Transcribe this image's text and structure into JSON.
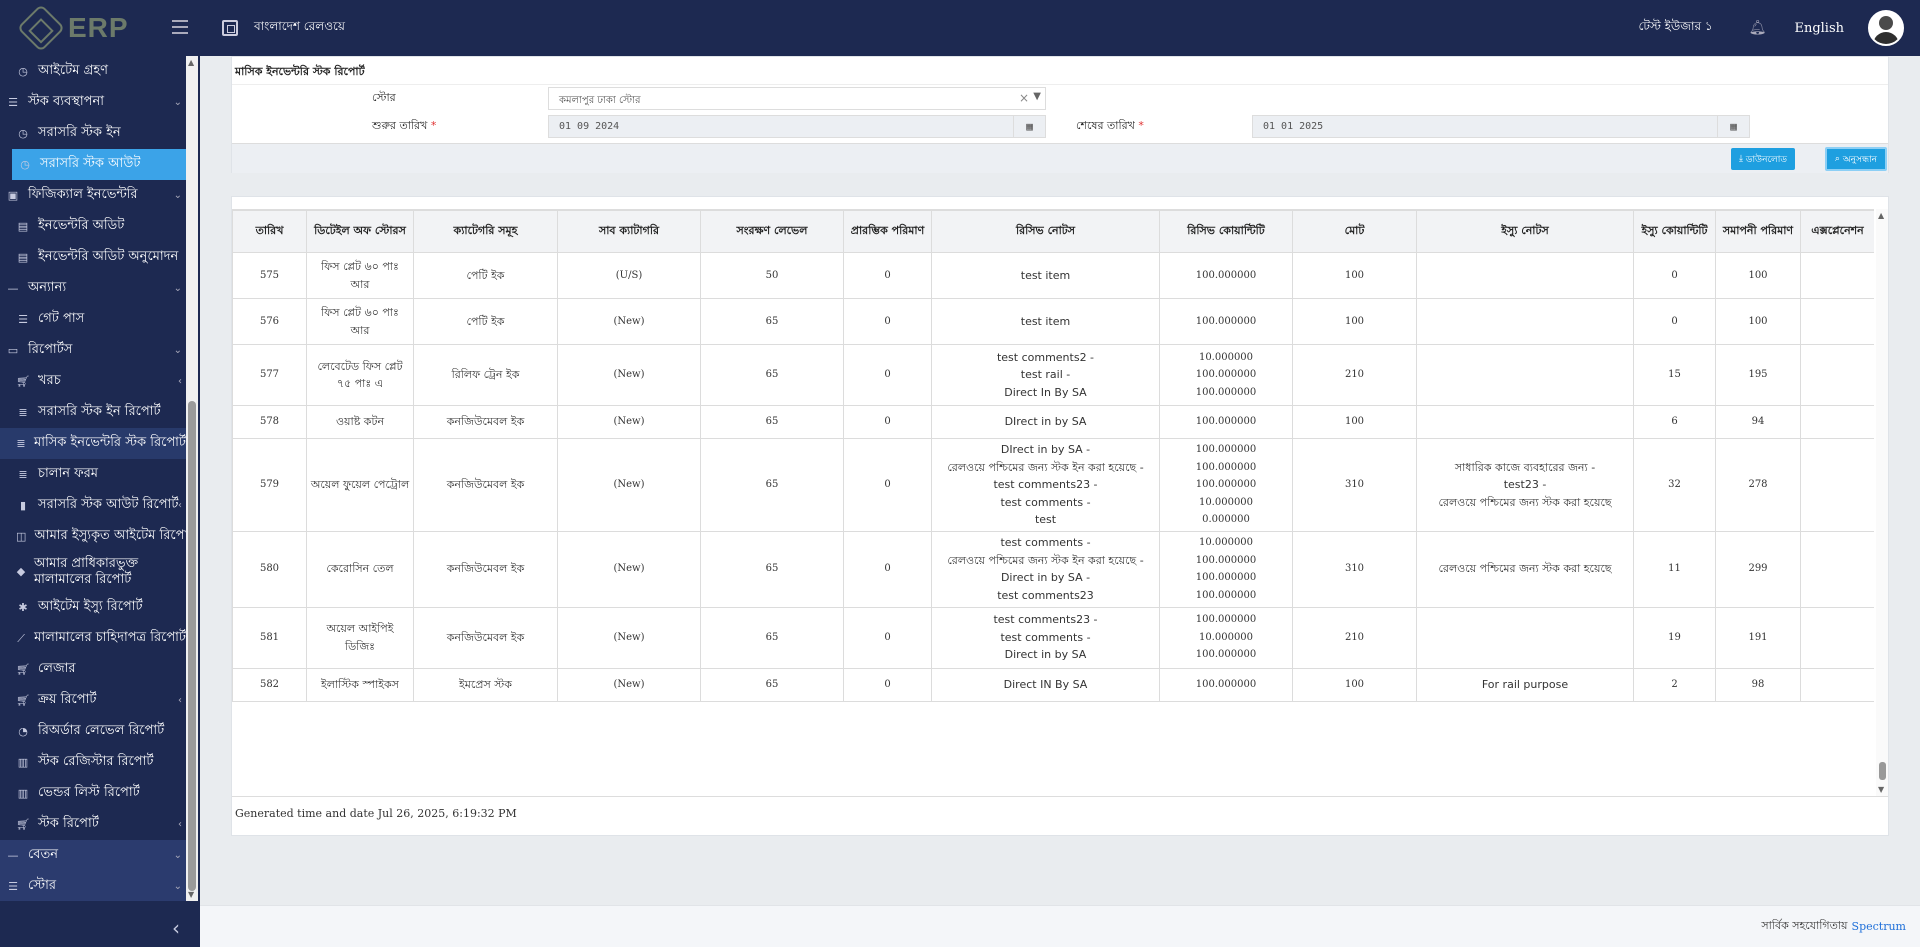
{
  "app": {
    "logo_text": "ERP",
    "org_name": "বাংলাদেশ রেলওয়ে",
    "user_name": "টেস্ট ইউজার ১",
    "language": "English"
  },
  "sidebar": {
    "items": [
      {
        "label": "আইটেম গ্রহণ",
        "icon": "clock-icon",
        "level": 2
      },
      {
        "label": "স্টক ব্যবস্থাপনা",
        "icon": "sliders-icon",
        "level": 1,
        "chev": "⌄"
      },
      {
        "label": "সরাসরি স্টক ইন",
        "icon": "clock-icon",
        "level": 2
      },
      {
        "label": "সরাসরি স্টক আউট",
        "icon": "clock-icon",
        "level": 2,
        "active": true
      },
      {
        "label": "ফিজিক্যাল ইনভেন্টরি",
        "icon": "boxes-icon",
        "level": 1,
        "chev": "⌄"
      },
      {
        "label": "ইনভেন্টরি অডিট",
        "icon": "film-icon",
        "level": 2
      },
      {
        "label": "ইনভেন্টরি অডিট অনুমোদন",
        "icon": "film-icon",
        "level": 2
      },
      {
        "label": "অন্যান্য",
        "icon": "dash-icon",
        "level": 1,
        "chev": "⌄"
      },
      {
        "label": "গেট পাস",
        "icon": "sliders-icon",
        "level": 2
      },
      {
        "label": "রিপোর্টস",
        "icon": "file-icon",
        "level": 1,
        "chev": "⌄"
      },
      {
        "label": "খরচ",
        "icon": "cart-icon",
        "level": 2,
        "chev": "‹"
      },
      {
        "label": "সরাসরি স্টক ইন রিপোর্ট",
        "icon": "stack-icon",
        "level": 2
      },
      {
        "label": "মাসিক ইনভেন্টরি স্টক রিপোর্ট",
        "icon": "stack-icon",
        "level": 2,
        "highlight": true
      },
      {
        "label": "চালান ফরম",
        "icon": "stack-icon",
        "level": 2
      },
      {
        "label": "সরাসরি স্টক আউট রিপোর্ট",
        "icon": "bookmark-icon",
        "level": 2,
        "chev": "‹"
      },
      {
        "label": "আমার ইস্যুকৃত আইটেম রিপোর্ট",
        "icon": "database-icon",
        "level": 2
      },
      {
        "label": "আমার প্রাধিকারভুক্ত মালামালের রিপোর্ট",
        "icon": "tag-icon",
        "level": 2,
        "multi": true
      },
      {
        "label": "আইটেম ইস্যু রিপোর্ট",
        "icon": "gear-icon",
        "level": 2
      },
      {
        "label": "মালামালের চাহিদাপত্র রিপোর্ট",
        "icon": "chart-icon",
        "level": 2
      },
      {
        "label": "লেজার",
        "icon": "cart-icon",
        "level": 2
      },
      {
        "label": "ক্রয় রিপোর্ট",
        "icon": "cart-icon",
        "level": 2,
        "chev": "‹"
      },
      {
        "label": "রিঅর্ডার লেভেল রিপোর্ট",
        "icon": "pie-icon",
        "level": 2
      },
      {
        "label": "স্টক রেজিস্টার রিপোর্ট",
        "icon": "bar-icon",
        "level": 2
      },
      {
        "label": "ভেন্ডর লিস্ট রিপোর্ট",
        "icon": "bar-icon",
        "level": 2
      },
      {
        "label": "স্টক রিপোর্ট",
        "icon": "cart-icon",
        "level": 2,
        "chev": "‹"
      },
      {
        "label": "বেতন",
        "icon": "dash-icon",
        "level": 1,
        "chev": "⌄",
        "section": true
      },
      {
        "label": "স্টোর",
        "icon": "sliders-icon",
        "level": 1,
        "chev": "⌄",
        "section": true
      }
    ]
  },
  "report": {
    "title": "মাসিক ইনভেন্টরি স্টক রিপোর্ট",
    "store_label": "স্টোর",
    "store_value": "কমলাপুর ঢাকা স্টোর",
    "start_label": "শুরুর তারিখ",
    "start_value": "01 09 2024",
    "end_label": "শেষের তারিখ",
    "end_value": "01 01 2025",
    "download_label": "ডাউনলোড",
    "search_label": "অনুসন্ধান",
    "generated": "Generated time and date Jul 26, 2025, 6:19:32 PM"
  },
  "table": {
    "headers": [
      "তারিখ",
      "ডিটেইল অফ স্টোরস",
      "ক্যাটেগরি সমূহ",
      "সাব ক্যাটাগরি",
      "সংরক্ষণ লেভেল",
      "প্রারম্ভিক পরিমাণ",
      "রিসিভ নোটস",
      "রিসিভ কোয়ান্টিটি",
      "মোট",
      "ইস্যু নোটস",
      "ইস্যু কোয়ান্টিটি",
      "সমাপনী পরিমাণ",
      "এক্সপ্লেনেশন"
    ],
    "rows": [
      [
        "575",
        "ফিস প্লেট ৬০ পাঃ আর",
        "পেটি ইক",
        "(U/S)",
        "50",
        "0",
        "test item",
        "100.000000",
        "100",
        "",
        "0",
        "100",
        ""
      ],
      [
        "576",
        "ফিস প্লেট ৬০ পাঃ আর",
        "পেটি ইক",
        "(New)",
        "65",
        "0",
        "test item",
        "100.000000",
        "100",
        "",
        "0",
        "100",
        ""
      ],
      [
        "577",
        "লেবেটেড ফিস প্লেট ৭৫ পাঃ এ",
        "রিলিফ ট্রেন ইক",
        "(New)",
        "65",
        "0",
        "test comments2 -\ntest rail -\nDirect In By SA",
        "10.000000\n100.000000\n100.000000",
        "210",
        "",
        "15",
        "195",
        ""
      ],
      [
        "578",
        "ওয়াষ্ট কটন",
        "কনজিউমেবল ইক",
        "(New)",
        "65",
        "0",
        "DIrect in by SA",
        "100.000000",
        "100",
        "",
        "6",
        "94",
        ""
      ],
      [
        "579",
        "অয়েল ফুয়েল পেট্রোল",
        "কনজিউমেবল ইক",
        "(New)",
        "65",
        "0",
        "DIrect in by SA -\nরেলওয়ে পশ্চিমের জন্য স্টক ইন করা হয়েছে -\ntest comments23 -\ntest comments -\ntest",
        "100.000000\n100.000000\n100.000000\n10.000000\n0.000000",
        "310",
        "সাধারিক কাজে ব্যবহারের জন্য -\ntest23 -\nরেলওয়ে পশ্চিমের জন্য স্টক করা হয়েছে",
        "32",
        "278",
        ""
      ],
      [
        "580",
        "কেরোসিন তেল",
        "কনজিউমেবল ইক",
        "(New)",
        "65",
        "0",
        "test comments -\nরেলওয়ে পশ্চিমের জন্য স্টক ইন করা হয়েছে -\nDirect in by SA -\ntest comments23",
        "10.000000\n100.000000\n100.000000\n100.000000",
        "310",
        "রেলওয়ে পশ্চিমের জন্য স্টক করা হয়েছে",
        "11",
        "299",
        ""
      ],
      [
        "581",
        "অয়েল আইপিই ডিজিঃ",
        "কনজিউমেবল ইক",
        "(New)",
        "65",
        "0",
        "test comments23 -\ntest comments -\nDirect in by SA",
        "100.000000\n10.000000\n100.000000",
        "210",
        "",
        "19",
        "191",
        ""
      ],
      [
        "582",
        "ইলাস্টিক স্পাইকস",
        "ইমপ্রেস স্টক",
        "(New)",
        "65",
        "0",
        "Direct IN By SA",
        "100.000000",
        "100",
        "For rail purpose",
        "2",
        "98",
        ""
      ]
    ]
  },
  "footer": {
    "credit": "সার্বিক সহযোগিতায়",
    "brand": "Spectrum"
  }
}
